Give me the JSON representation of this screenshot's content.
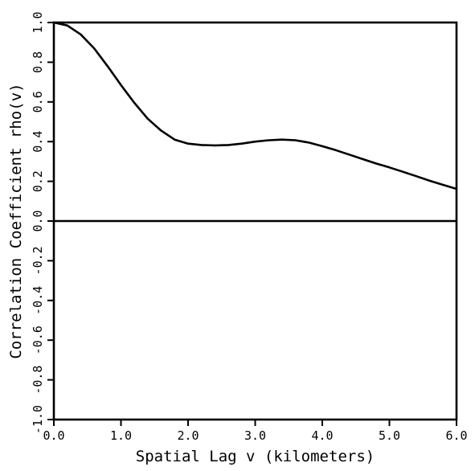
{
  "chart_data": {
    "type": "line",
    "title": "",
    "xlabel": "Spatial Lag v (kilometers)",
    "ylabel": "Correlation Coefficient rho(v)",
    "xlim": [
      0.0,
      6.0
    ],
    "ylim": [
      -1.0,
      1.0
    ],
    "x_ticks": [
      "0.0",
      "1.0",
      "2.0",
      "3.0",
      "4.0",
      "5.0",
      "6.0"
    ],
    "y_ticks": [
      "-1.0",
      "-0.8",
      "-0.6",
      "-0.4",
      "-0.2",
      "0.0",
      "0.2",
      "0.4",
      "0.6",
      "0.8",
      "1.0"
    ],
    "grid": false,
    "zero_line": true,
    "line_color": "#000000",
    "series": [
      {
        "x": [
          0.0,
          0.2,
          0.4,
          0.6,
          0.8,
          1.0,
          1.2,
          1.4,
          1.6,
          1.8,
          2.0,
          2.2,
          2.4,
          2.6,
          2.8,
          3.0,
          3.2,
          3.4,
          3.6,
          3.8,
          4.0,
          4.2,
          4.4,
          4.6,
          4.8,
          5.0,
          5.2,
          5.4,
          5.6,
          5.8,
          6.0
        ],
        "values": [
          1.0,
          0.985,
          0.94,
          0.87,
          0.78,
          0.685,
          0.595,
          0.515,
          0.455,
          0.41,
          0.39,
          0.383,
          0.381,
          0.383,
          0.39,
          0.4,
          0.407,
          0.41,
          0.407,
          0.395,
          0.377,
          0.357,
          0.335,
          0.312,
          0.29,
          0.27,
          0.248,
          0.226,
          0.203,
          0.182,
          0.162
        ]
      }
    ]
  }
}
